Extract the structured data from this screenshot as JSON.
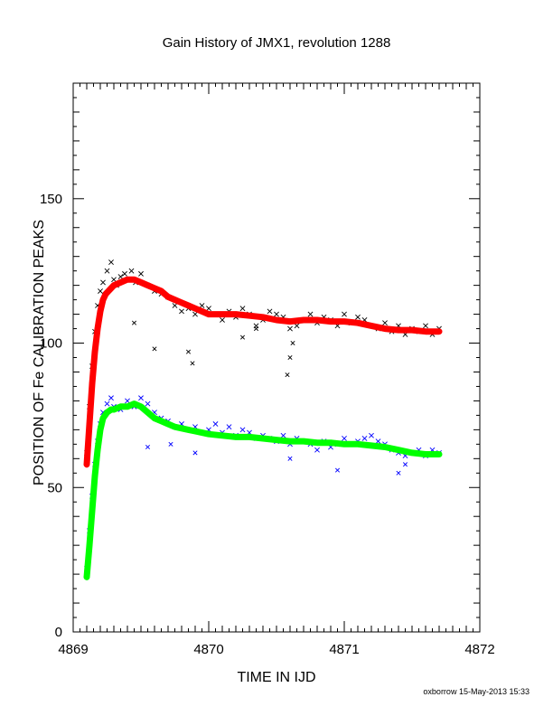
{
  "chart_data": {
    "type": "scatter",
    "title": "Gain History of JMX1, revolution 1288",
    "xlabel": "TIME IN IJD",
    "ylabel": "POSITION OF Fe CALIBRATION PEAKS",
    "xlim": [
      4869,
      4872
    ],
    "ylim": [
      0,
      190
    ],
    "x_ticks": [
      4869,
      4870,
      4871,
      4872
    ],
    "x_tick_labels": [
      "4869",
      "4870",
      "4871",
      "4872"
    ],
    "y_ticks": [
      0,
      50,
      100,
      150
    ],
    "y_tick_labels": [
      "0",
      "50",
      "100",
      "150"
    ],
    "grid": false,
    "legend": "none",
    "footer": "oxborrow 15-May-2013 15:33",
    "series": [
      {
        "color": "#000000",
        "marker": "x",
        "style": "scatter",
        "x": [
          4869.1,
          4869.12,
          4869.14,
          4869.16,
          4869.18,
          4869.2,
          4869.22,
          4869.25,
          4869.28,
          4869.3,
          4869.32,
          4869.35,
          4869.38,
          4869.4,
          4869.43,
          4869.46,
          4869.5,
          4869.55,
          4869.6,
          4869.65,
          4869.7,
          4869.75,
          4869.8,
          4869.85,
          4869.9,
          4869.95,
          4870.0,
          4870.05,
          4870.1,
          4870.15,
          4870.2,
          4870.25,
          4870.3,
          4870.35,
          4870.4,
          4870.45,
          4870.5,
          4870.55,
          4870.6,
          4870.65,
          4870.7,
          4870.75,
          4870.8,
          4870.85,
          4870.9,
          4870.95,
          4871.0,
          4871.05,
          4871.1,
          4871.15,
          4871.2,
          4871.25,
          4871.3,
          4871.35,
          4871.4,
          4871.45,
          4871.5,
          4871.55,
          4871.6,
          4871.65,
          4871.7
        ],
        "y": [
          62,
          78,
          92,
          104,
          113,
          118,
          121,
          125,
          128,
          122,
          120,
          123,
          124,
          122,
          125,
          121,
          124,
          120,
          118,
          117,
          116,
          113,
          111,
          112,
          110,
          113,
          112,
          110,
          108,
          111,
          109,
          112,
          110,
          106,
          108,
          111,
          110,
          109,
          105,
          106,
          108,
          110,
          107,
          109,
          108,
          106,
          110,
          107,
          109,
          108,
          106,
          105,
          107,
          104,
          106,
          103,
          105,
          104,
          106,
          103,
          105
        ]
      },
      {
        "color": "#000000",
        "marker": "x",
        "style": "outlier-scatter",
        "x": [
          4869.45,
          4869.6,
          4869.85,
          4869.88,
          4870.25,
          4870.35,
          4870.58,
          4870.6,
          4870.62
        ],
        "y": [
          107,
          98,
          97,
          93,
          102,
          105,
          89,
          95,
          100
        ]
      },
      {
        "color": "#0000ff",
        "marker": "x",
        "style": "scatter",
        "x": [
          4869.1,
          4869.12,
          4869.14,
          4869.16,
          4869.18,
          4869.2,
          4869.22,
          4869.25,
          4869.28,
          4869.3,
          4869.35,
          4869.4,
          4869.45,
          4869.5,
          4869.55,
          4869.6,
          4869.65,
          4869.7,
          4869.75,
          4869.8,
          4869.85,
          4869.9,
          4869.95,
          4870.0,
          4870.05,
          4870.1,
          4870.15,
          4870.2,
          4870.25,
          4870.3,
          4870.35,
          4870.4,
          4870.45,
          4870.5,
          4870.55,
          4870.6,
          4870.65,
          4870.7,
          4870.75,
          4870.8,
          4870.85,
          4870.9,
          4870.95,
          4871.0,
          4871.05,
          4871.1,
          4871.15,
          4871.2,
          4871.25,
          4871.3,
          4871.35,
          4871.4,
          4871.45,
          4871.5,
          4871.55,
          4871.6,
          4871.65,
          4871.7
        ],
        "y": [
          22,
          35,
          47,
          58,
          66,
          72,
          76,
          79,
          81,
          78,
          77,
          80,
          78,
          81,
          79,
          76,
          74,
          73,
          71,
          72,
          70,
          71,
          69,
          70,
          72,
          69,
          71,
          68,
          70,
          69,
          67,
          68,
          67,
          66,
          68,
          65,
          67,
          66,
          65,
          63,
          66,
          64,
          65,
          67,
          65,
          66,
          67,
          68,
          66,
          65,
          63,
          62,
          61,
          62,
          63,
          61,
          63,
          62
        ]
      },
      {
        "color": "#0000ff",
        "marker": "x",
        "style": "outlier-scatter",
        "x": [
          4869.55,
          4869.72,
          4869.9,
          4870.6,
          4870.95,
          4871.4,
          4871.45
        ],
        "y": [
          64,
          65,
          62,
          60,
          56,
          55,
          58
        ]
      },
      {
        "color": "#ff0000",
        "marker": "+",
        "style": "fit",
        "x": [
          4869.1,
          4869.12,
          4869.14,
          4869.16,
          4869.18,
          4869.2,
          4869.22,
          4869.24,
          4869.26,
          4869.28,
          4869.3,
          4869.35,
          4869.4,
          4869.45,
          4869.5,
          4869.55,
          4869.6,
          4869.65,
          4869.7,
          4869.75,
          4869.8,
          4869.85,
          4869.9,
          4869.95,
          4870.0,
          4870.1,
          4870.2,
          4870.3,
          4870.4,
          4870.5,
          4870.6,
          4870.7,
          4870.8,
          4870.9,
          4871.0,
          4871.1,
          4871.2,
          4871.3,
          4871.4,
          4871.5,
          4871.6,
          4871.7
        ],
        "y": [
          58,
          72,
          86,
          97,
          105,
          111,
          115,
          117,
          118,
          119,
          120,
          121,
          122,
          122,
          121,
          120,
          119,
          118,
          116,
          115,
          114,
          113,
          112,
          111,
          110,
          110,
          110,
          109.5,
          109,
          108,
          107.5,
          108,
          108,
          107.5,
          107.5,
          107,
          106,
          105,
          104.5,
          104.5,
          104,
          104
        ]
      },
      {
        "color": "#00ff00",
        "marker": "+",
        "style": "fit",
        "x": [
          4869.1,
          4869.12,
          4869.14,
          4869.16,
          4869.18,
          4869.2,
          4869.22,
          4869.25,
          4869.28,
          4869.3,
          4869.35,
          4869.4,
          4869.45,
          4869.5,
          4869.55,
          4869.6,
          4869.65,
          4869.7,
          4869.75,
          4869.8,
          4869.85,
          4869.9,
          4869.95,
          4870.0,
          4870.1,
          4870.2,
          4870.3,
          4870.4,
          4870.5,
          4870.6,
          4870.7,
          4870.8,
          4870.9,
          4871.0,
          4871.1,
          4871.2,
          4871.3,
          4871.4,
          4871.5,
          4871.6,
          4871.7
        ],
        "y": [
          19,
          30,
          42,
          54,
          63,
          70,
          74,
          76,
          77,
          77,
          78,
          78,
          79,
          78,
          76,
          74,
          73,
          72,
          71,
          70.5,
          70,
          69.5,
          69,
          68.5,
          68,
          67.5,
          67.5,
          67,
          66.5,
          66,
          66,
          65.5,
          65.5,
          65,
          65,
          64.5,
          64,
          63,
          62,
          61.5,
          61.5
        ]
      }
    ]
  }
}
